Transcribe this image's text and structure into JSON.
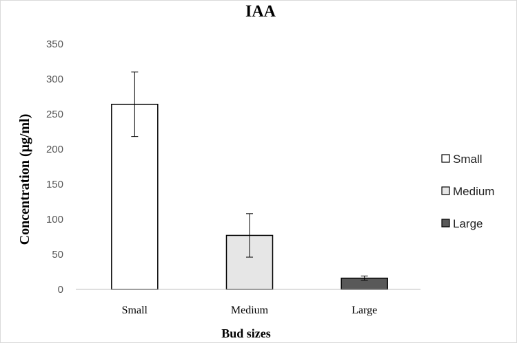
{
  "chart_data": {
    "type": "bar",
    "title": "IAA",
    "xlabel": "Bud sizes",
    "ylabel": "Concentration (μg/ml)",
    "categories": [
      "Small",
      "Medium",
      "Large"
    ],
    "values": [
      264,
      77,
      16
    ],
    "error": [
      46,
      31,
      3
    ],
    "ylim": [
      0,
      350
    ],
    "yticks": [
      0,
      50,
      100,
      150,
      200,
      250,
      300,
      350
    ],
    "colors": [
      "#ffffff",
      "#e6e6e6",
      "#595959"
    ],
    "grid": false,
    "legend": {
      "position": "right",
      "entries": [
        "Small",
        "Medium",
        "Large"
      ]
    }
  }
}
